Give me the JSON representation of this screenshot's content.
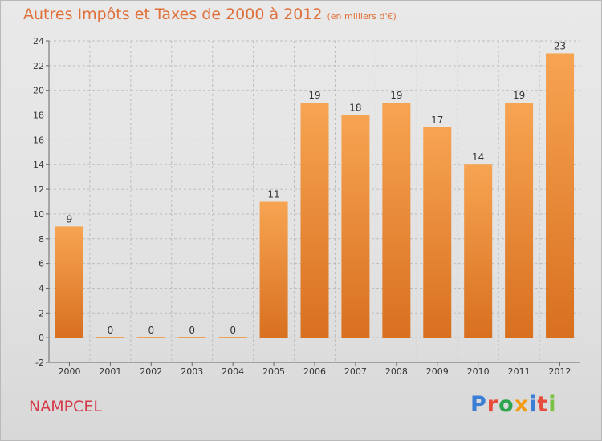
{
  "title": "Autres Impôts et Taxes de 2000 à 2012",
  "subtitle": "(en milliers d'€)",
  "location": "NAMPCEL",
  "brand": {
    "letters": [
      "P",
      "r",
      "o",
      "x",
      "i",
      "t",
      "i"
    ],
    "colors": [
      "#3a7fd5",
      "#e74c3c",
      "#2ea44f",
      "#f39c12",
      "#3a7fd5",
      "#e74c3c",
      "#7cc242"
    ]
  },
  "colors": {
    "bar_top": "#f7a452",
    "bar_bottom": "#d8701f",
    "title": "#e0703a",
    "location": "#d63a4c"
  },
  "chart_data": {
    "type": "bar",
    "categories": [
      "2000",
      "2001",
      "2002",
      "2003",
      "2004",
      "2005",
      "2006",
      "2007",
      "2008",
      "2009",
      "2010",
      "2011",
      "2012"
    ],
    "values": [
      9,
      0,
      0,
      0,
      0,
      11,
      19,
      18,
      19,
      17,
      14,
      19,
      23
    ],
    "title": "Autres Impôts et Taxes de 2000 à 2012",
    "xlabel": "",
    "ylabel": "",
    "ylim": [
      -2,
      24
    ],
    "yticks": [
      -2,
      0,
      2,
      4,
      6,
      8,
      10,
      12,
      14,
      16,
      18,
      20,
      22,
      24
    ],
    "grid": true
  }
}
